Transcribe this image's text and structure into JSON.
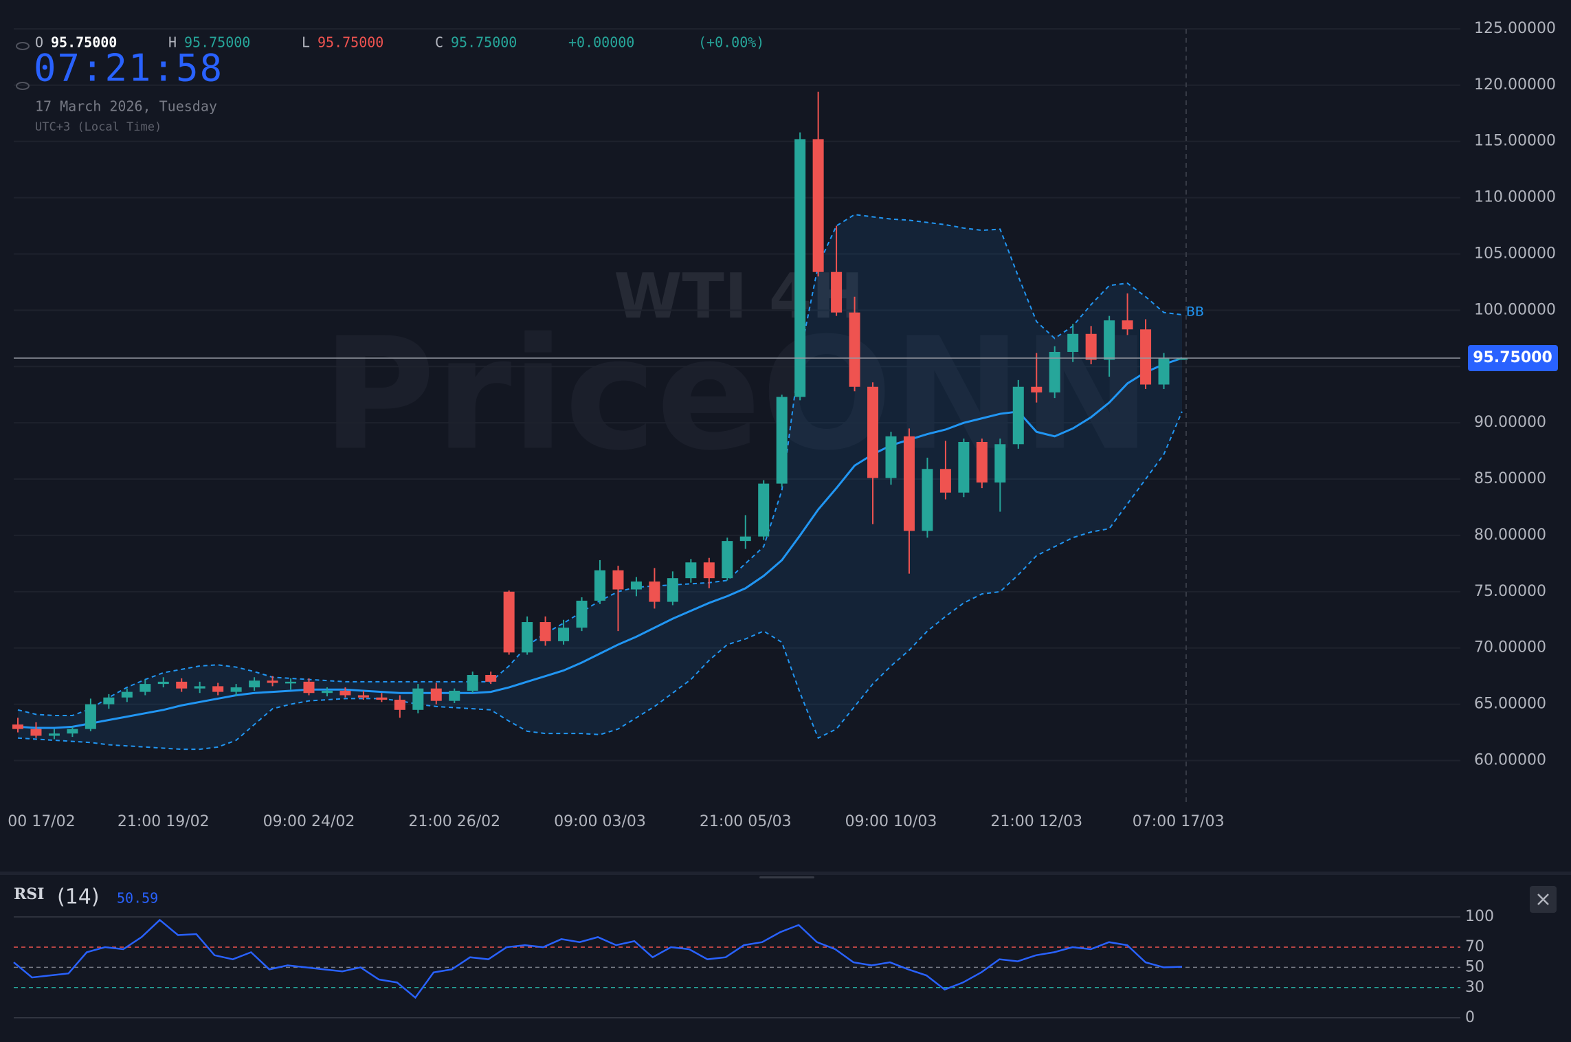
{
  "chart_data": [
    {
      "type": "candlestick",
      "title": "WTI 4H",
      "watermark": "PriceONN",
      "header": {
        "open_label": "O",
        "open": "95.75000",
        "high_label": "H",
        "high": "95.75000",
        "low_label": "L",
        "low": "95.75000",
        "close_label": "C",
        "close": "95.75000",
        "change": "+0.00000",
        "change_pct": "(+0.00%)"
      },
      "clock": "07:21:58",
      "date": "17 March 2026, Tuesday",
      "timezone": "UTC+3 (Local Time)",
      "up_color": "#26a69a",
      "down_color": "#ef5350",
      "ohlc": [
        [
          63.2,
          63.8,
          62.5,
          62.8
        ],
        [
          62.8,
          63.4,
          62.0,
          62.2
        ],
        [
          62.2,
          62.8,
          61.9,
          62.4
        ],
        [
          62.4,
          63.0,
          62.1,
          62.8
        ],
        [
          62.8,
          65.5,
          62.6,
          65.0
        ],
        [
          65.0,
          65.9,
          64.6,
          65.6
        ],
        [
          65.6,
          66.4,
          65.2,
          66.1
        ],
        [
          66.1,
          67.2,
          65.8,
          66.8
        ],
        [
          66.8,
          67.4,
          66.5,
          67.0
        ],
        [
          67.0,
          67.3,
          66.1,
          66.4
        ],
        [
          66.4,
          67.0,
          66.0,
          66.6
        ],
        [
          66.6,
          66.9,
          65.8,
          66.1
        ],
        [
          66.1,
          66.8,
          65.7,
          66.5
        ],
        [
          66.5,
          67.4,
          66.2,
          67.1
        ],
        [
          67.1,
          67.5,
          66.6,
          66.9
        ],
        [
          66.9,
          67.3,
          66.3,
          67.0
        ],
        [
          67.0,
          67.3,
          65.8,
          66.0
        ],
        [
          66.0,
          66.5,
          65.7,
          66.2
        ],
        [
          66.2,
          66.5,
          65.6,
          65.8
        ],
        [
          65.8,
          66.2,
          65.4,
          65.6
        ],
        [
          65.6,
          66.0,
          65.2,
          65.4
        ],
        [
          65.4,
          65.8,
          63.8,
          64.5
        ],
        [
          64.5,
          66.8,
          64.2,
          66.4
        ],
        [
          66.4,
          66.9,
          65.0,
          65.3
        ],
        [
          65.3,
          66.4,
          65.1,
          66.2
        ],
        [
          66.2,
          67.9,
          66.0,
          67.6
        ],
        [
          67.6,
          67.9,
          66.8,
          67.0
        ],
        [
          75.0,
          75.1,
          69.4,
          69.6
        ],
        [
          69.6,
          72.8,
          69.4,
          72.3
        ],
        [
          72.3,
          72.8,
          70.2,
          70.6
        ],
        [
          70.6,
          72.5,
          70.3,
          71.8
        ],
        [
          71.8,
          74.5,
          71.5,
          74.2
        ],
        [
          74.2,
          77.8,
          73.9,
          76.9
        ],
        [
          76.9,
          77.3,
          71.5,
          75.2
        ],
        [
          75.2,
          76.3,
          74.6,
          75.9
        ],
        [
          75.9,
          77.1,
          73.5,
          74.1
        ],
        [
          74.1,
          76.8,
          73.8,
          76.2
        ],
        [
          76.2,
          77.9,
          75.8,
          77.6
        ],
        [
          77.6,
          78.0,
          75.3,
          76.2
        ],
        [
          76.2,
          79.8,
          76.0,
          79.5
        ],
        [
          79.5,
          81.8,
          78.8,
          79.9
        ],
        [
          79.9,
          84.9,
          79.6,
          84.6
        ],
        [
          84.6,
          92.5,
          84.3,
          92.3
        ],
        [
          92.3,
          115.8,
          92.0,
          115.2
        ],
        [
          115.2,
          119.4,
          103.0,
          103.4
        ],
        [
          103.4,
          107.5,
          99.5,
          99.8
        ],
        [
          99.8,
          101.2,
          92.8,
          93.2
        ],
        [
          93.2,
          93.6,
          81.0,
          85.1
        ],
        [
          85.1,
          89.2,
          84.5,
          88.8
        ],
        [
          88.8,
          89.5,
          76.6,
          80.4
        ],
        [
          80.4,
          86.9,
          79.8,
          85.9
        ],
        [
          85.9,
          88.4,
          83.2,
          83.8
        ],
        [
          83.8,
          88.6,
          83.4,
          88.3
        ],
        [
          88.3,
          88.6,
          84.2,
          84.7
        ],
        [
          84.7,
          88.6,
          82.1,
          88.1
        ],
        [
          88.1,
          93.8,
          87.7,
          93.2
        ],
        [
          93.2,
          96.2,
          91.8,
          92.7
        ],
        [
          92.7,
          96.8,
          92.2,
          96.3
        ],
        [
          96.3,
          98.8,
          95.4,
          97.9
        ],
        [
          97.9,
          98.6,
          95.2,
          95.6
        ],
        [
          95.6,
          99.5,
          94.1,
          99.1
        ],
        [
          99.1,
          101.5,
          97.8,
          98.3
        ],
        [
          98.3,
          99.2,
          93.0,
          93.4
        ],
        [
          93.4,
          96.2,
          93.0,
          95.75
        ],
        [
          95.75,
          95.75,
          95.75,
          95.75
        ]
      ],
      "bollinger": {
        "name": "BB",
        "color": "#2196f3",
        "upper": [
          64.5,
          64.1,
          64.0,
          64.0,
          64.6,
          65.6,
          66.5,
          67.2,
          67.8,
          68.1,
          68.4,
          68.5,
          68.3,
          67.9,
          67.4,
          67.3,
          67.2,
          67.1,
          67.0,
          67.0,
          67.0,
          67.0,
          67.0,
          67.0,
          67.0,
          67.0,
          67.0,
          68.4,
          70.2,
          71.3,
          72.2,
          73.2,
          74.2,
          75.0,
          75.4,
          75.5,
          75.6,
          75.7,
          75.8,
          76.0,
          77.5,
          79.0,
          84.0,
          96.0,
          104.0,
          107.5,
          108.5,
          108.3,
          108.1,
          108.0,
          107.8,
          107.6,
          107.3,
          107.1,
          107.2,
          103.0,
          99.0,
          97.5,
          98.6,
          100.5,
          102.2,
          102.4,
          101.2,
          99.8,
          99.6
        ],
        "basis": [
          63.0,
          62.9,
          62.9,
          63.0,
          63.3,
          63.6,
          63.9,
          64.2,
          64.5,
          64.9,
          65.2,
          65.5,
          65.8,
          66.0,
          66.1,
          66.2,
          66.3,
          66.3,
          66.3,
          66.2,
          66.1,
          66.0,
          66.0,
          66.0,
          66.0,
          66.0,
          66.1,
          66.5,
          67.0,
          67.5,
          68.0,
          68.7,
          69.5,
          70.3,
          71.0,
          71.8,
          72.6,
          73.3,
          74.0,
          74.6,
          75.3,
          76.4,
          77.8,
          80.0,
          82.3,
          84.2,
          86.2,
          87.2,
          88.0,
          88.5,
          89.0,
          89.4,
          90.0,
          90.4,
          90.8,
          91.0,
          89.2,
          88.8,
          89.5,
          90.5,
          91.8,
          93.5,
          94.5,
          95.2,
          95.75
        ],
        "lower": [
          62.0,
          61.9,
          61.8,
          61.7,
          61.6,
          61.4,
          61.3,
          61.2,
          61.1,
          61.0,
          61.0,
          61.2,
          61.8,
          63.2,
          64.6,
          65.0,
          65.3,
          65.4,
          65.5,
          65.5,
          65.5,
          65.3,
          65.0,
          64.8,
          64.7,
          64.6,
          64.5,
          63.5,
          62.6,
          62.4,
          62.4,
          62.4,
          62.3,
          62.8,
          63.8,
          64.8,
          66.0,
          67.2,
          68.9,
          70.3,
          70.8,
          71.5,
          70.5,
          66.0,
          62.0,
          62.8,
          64.8,
          66.8,
          68.4,
          69.8,
          71.5,
          72.8,
          74.0,
          74.8,
          75.0,
          76.5,
          78.2,
          79.0,
          79.8,
          80.3,
          80.6,
          82.8,
          85.0,
          87.2,
          91.0
        ]
      },
      "last_price": {
        "value": 95.75,
        "label": "95.75000"
      },
      "ylim": [
        56,
        127.5
      ],
      "yticks": [
        {
          "value": 60,
          "label": "60.00000"
        },
        {
          "value": 65,
          "label": "65.00000"
        },
        {
          "value": 70,
          "label": "70.00000"
        },
        {
          "value": 75,
          "label": "75.00000"
        },
        {
          "value": 80,
          "label": "80.00000"
        },
        {
          "value": 85,
          "label": "85.00000"
        },
        {
          "value": 90,
          "label": "90.00000"
        },
        {
          "value": 95,
          "label": "95.00000"
        },
        {
          "value": 100,
          "label": "100.00000"
        },
        {
          "value": 105,
          "label": "105.00000"
        },
        {
          "value": 110,
          "label": "110.00000"
        },
        {
          "value": 115,
          "label": "115.00000"
        },
        {
          "value": 120,
          "label": "120.00000"
        },
        {
          "value": 125,
          "label": "125.00000"
        }
      ],
      "xticks": [
        {
          "value": 1.3,
          "label": "00 17/02"
        },
        {
          "value": 8,
          "label": "21:00 19/02"
        },
        {
          "value": 16,
          "label": "09:00 24/02"
        },
        {
          "value": 24,
          "label": "21:00 26/02"
        },
        {
          "value": 32,
          "label": "09:00 03/03"
        },
        {
          "value": 40,
          "label": "21:00 05/03"
        },
        {
          "value": 48,
          "label": "09:00 10/03"
        },
        {
          "value": 56,
          "label": "21:00 12/03"
        },
        {
          "value": 63.8,
          "label": "07:00 17/03"
        }
      ],
      "grid": true
    },
    {
      "type": "line",
      "name": "RSI",
      "length": "(14)",
      "color": "#2962ff",
      "values": [
        55,
        40,
        42,
        44,
        65,
        70,
        68,
        80,
        97,
        82,
        83,
        62,
        58,
        65,
        48,
        52,
        50,
        48,
        46,
        50,
        38,
        35,
        20,
        45,
        48,
        60,
        58,
        70,
        72,
        70,
        78,
        75,
        80,
        72,
        76,
        60,
        70,
        68,
        58,
        60,
        72,
        75,
        85,
        92,
        75,
        68,
        55,
        52,
        55,
        48,
        42,
        28,
        35,
        45,
        58,
        56,
        62,
        65,
        70,
        68,
        75,
        72,
        55,
        50,
        50.59
      ],
      "ylim": [
        -24,
        130
      ],
      "yticks": [
        0,
        30,
        50,
        70,
        100
      ],
      "tick_line_colors": [
        "#363a45",
        "#26a69a",
        "#787b86",
        "#ef5350",
        "#363a45"
      ],
      "tick_line_dashed": [
        false,
        true,
        true,
        true,
        false
      ]
    }
  ]
}
